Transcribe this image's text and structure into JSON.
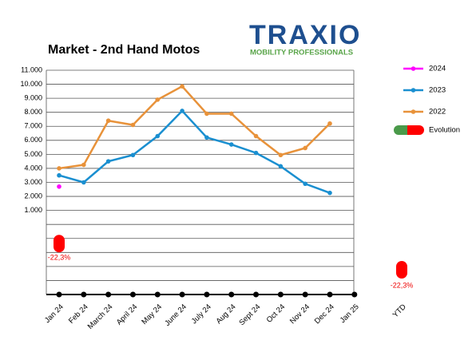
{
  "chart_data": {
    "type": "line",
    "title": "Market - 2nd Hand Motos",
    "logo": {
      "name": "TRAXIO",
      "tagline": "MOBILITY PROFESSIONALS"
    },
    "categories": [
      "Jan 24",
      "Feb 24",
      "March 24",
      "April 24",
      "May 24",
      "June 24",
      "July 24",
      "Aug 24",
      "Sept 24",
      "Oct 24",
      "Nov 24",
      "Dec 24",
      "Jan 25"
    ],
    "ylim": [
      -5000,
      11000
    ],
    "yticks": [
      {
        "value": -4000,
        "label": null
      },
      {
        "value": -3000,
        "label": null
      },
      {
        "value": -2000,
        "label": null
      },
      {
        "value": -1000,
        "label": null
      },
      {
        "value": 0,
        "label": null
      },
      {
        "value": 1000,
        "label": "1.000"
      },
      {
        "value": 2000,
        "label": "2.000"
      },
      {
        "value": 3000,
        "label": "3.000"
      },
      {
        "value": 4000,
        "label": "4.000"
      },
      {
        "value": 5000,
        "label": "5.000"
      },
      {
        "value": 6000,
        "label": "6.000"
      },
      {
        "value": 7000,
        "label": "7.000"
      },
      {
        "value": 8000,
        "label": "8.000"
      },
      {
        "value": 9000,
        "label": "9.000"
      },
      {
        "value": 10000,
        "label": "10.000"
      },
      {
        "value": 11000,
        "label": "11.000"
      }
    ],
    "y2lim": [
      -45,
      55
    ],
    "grid": true,
    "series": [
      {
        "name": "2024",
        "color": "#ff00ff",
        "values": [
          2700,
          null,
          null,
          null,
          null,
          null,
          null,
          null,
          null,
          null,
          null,
          null,
          null
        ]
      },
      {
        "name": "2023",
        "color": "#1a8fd0",
        "values": [
          3500,
          3000,
          4500,
          4950,
          6300,
          8100,
          6200,
          5700,
          5100,
          4150,
          2900,
          2250,
          null
        ]
      },
      {
        "name": "2022",
        "color": "#e8923a",
        "values": [
          4000,
          4250,
          7400,
          7100,
          8900,
          9850,
          7900,
          7900,
          6300,
          4950,
          5450,
          7200,
          null
        ]
      },
      {
        "name": "Evolution",
        "type": "pill",
        "axis": "y2",
        "color": "#ff0000",
        "positive_color": "#4a9a4a",
        "values": [
          -22.3,
          null,
          null,
          null,
          null,
          null,
          null,
          null,
          null,
          null,
          null,
          null,
          null
        ],
        "value_labels": [
          "-22,3%",
          null,
          null,
          null,
          null,
          null,
          null,
          null,
          null,
          null,
          null,
          null,
          null
        ]
      }
    ],
    "ytd": {
      "label": "YTD",
      "value": -22.3,
      "value_label": "-22,3%"
    }
  }
}
